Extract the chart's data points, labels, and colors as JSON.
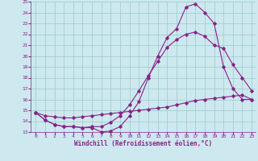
{
  "xlabel": "Windchill (Refroidissement éolien,°C)",
  "bg_color": "#cde8ee",
  "line_color": "#882288",
  "grid_color": "#99cccc",
  "xlim_min": -0.5,
  "xlim_max": 23.4,
  "ylim_min": 13,
  "ylim_max": 25,
  "yticks": [
    13,
    14,
    15,
    16,
    17,
    18,
    19,
    20,
    21,
    22,
    23,
    24,
    25
  ],
  "xticks": [
    0,
    1,
    2,
    3,
    4,
    5,
    6,
    7,
    8,
    9,
    10,
    11,
    12,
    13,
    14,
    15,
    16,
    17,
    18,
    19,
    20,
    21,
    22,
    23
  ],
  "line1_x": [
    0,
    1,
    2,
    3,
    4,
    5,
    6,
    7,
    8,
    9,
    10,
    11,
    12,
    13,
    14,
    15,
    16,
    17,
    18,
    19,
    20,
    21,
    22,
    23
  ],
  "line1_y": [
    14.8,
    14.1,
    13.7,
    13.5,
    13.5,
    13.4,
    13.4,
    13.0,
    13.1,
    13.5,
    14.5,
    15.8,
    18.0,
    20.0,
    21.7,
    22.5,
    24.5,
    24.8,
    24.0,
    23.0,
    19.0,
    17.0,
    16.0,
    16.0
  ],
  "line2_x": [
    0,
    1,
    2,
    3,
    4,
    5,
    6,
    7,
    8,
    9,
    10,
    11,
    12,
    13,
    14,
    15,
    16,
    17,
    18,
    19,
    20,
    21,
    22,
    23
  ],
  "line2_y": [
    14.8,
    14.1,
    13.7,
    13.5,
    13.5,
    13.4,
    13.5,
    13.5,
    13.9,
    14.5,
    15.5,
    16.8,
    18.2,
    19.5,
    20.8,
    21.5,
    22.0,
    22.2,
    21.8,
    21.0,
    20.7,
    19.2,
    18.0,
    16.8
  ],
  "line3_x": [
    0,
    1,
    2,
    3,
    4,
    5,
    6,
    7,
    8,
    9,
    10,
    11,
    12,
    13,
    14,
    15,
    16,
    17,
    18,
    19,
    20,
    21,
    22,
    23
  ],
  "line3_y": [
    14.8,
    14.5,
    14.4,
    14.3,
    14.3,
    14.4,
    14.5,
    14.6,
    14.7,
    14.8,
    14.9,
    15.0,
    15.1,
    15.2,
    15.3,
    15.5,
    15.7,
    15.9,
    16.0,
    16.1,
    16.2,
    16.3,
    16.4,
    16.0
  ]
}
